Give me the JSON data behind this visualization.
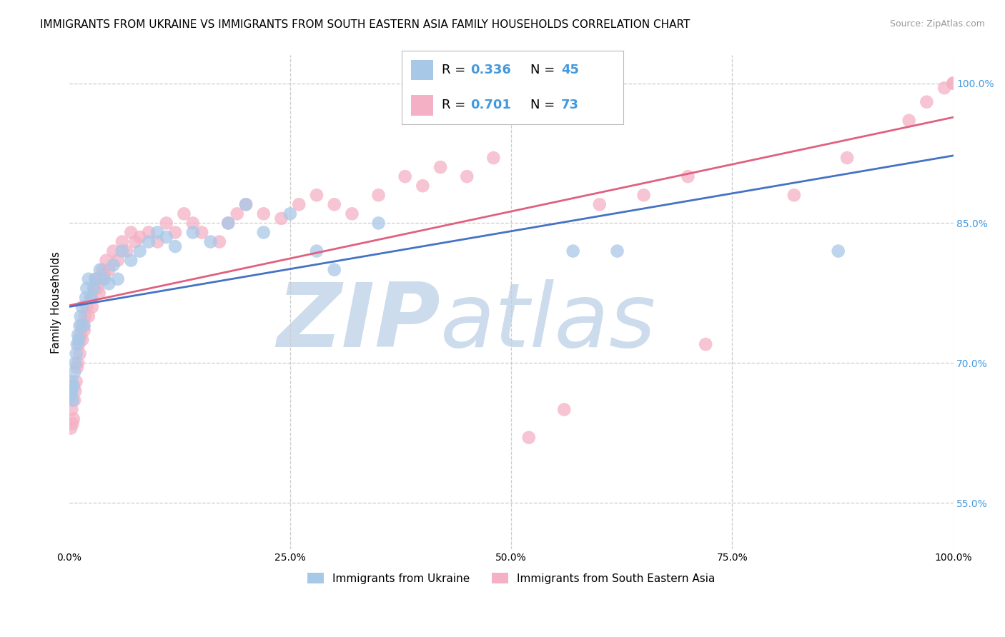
{
  "title": "IMMIGRANTS FROM UKRAINE VS IMMIGRANTS FROM SOUTH EASTERN ASIA FAMILY HOUSEHOLDS CORRELATION CHART",
  "source": "Source: ZipAtlas.com",
  "xlabel": "",
  "ylabel": "Family Households",
  "xmin": 0.0,
  "xmax": 100.0,
  "ymin": 50.0,
  "ymax": 103.0,
  "yticks": [
    55.0,
    70.0,
    85.0,
    100.0
  ],
  "xticks": [
    0.0,
    25.0,
    50.0,
    75.0,
    100.0
  ],
  "ukraine": {
    "label": "Immigrants from Ukraine",
    "color": "#a8c8e8",
    "trend_color": "#4472c4",
    "R": 0.336,
    "N": 45,
    "x": [
      0.2,
      0.3,
      0.3,
      0.4,
      0.5,
      0.6,
      0.7,
      0.8,
      0.9,
      1.0,
      1.1,
      1.2,
      1.3,
      1.5,
      1.7,
      1.9,
      2.0,
      2.2,
      2.5,
      2.8,
      3.0,
      3.5,
      4.0,
      4.5,
      5.0,
      5.5,
      6.0,
      7.0,
      8.0,
      9.0,
      10.0,
      11.0,
      12.0,
      14.0,
      16.0,
      18.0,
      20.0,
      22.0,
      25.0,
      28.0,
      30.0,
      35.0,
      57.0,
      62.0,
      87.0
    ],
    "y": [
      66.5,
      68.0,
      67.0,
      66.0,
      67.5,
      69.0,
      70.0,
      71.0,
      72.0,
      73.0,
      72.5,
      74.0,
      75.0,
      76.0,
      74.0,
      77.0,
      78.0,
      79.0,
      77.0,
      78.0,
      79.0,
      80.0,
      79.0,
      78.5,
      80.5,
      79.0,
      82.0,
      81.0,
      82.0,
      83.0,
      84.0,
      83.5,
      82.5,
      84.0,
      83.0,
      85.0,
      87.0,
      84.0,
      86.0,
      82.0,
      80.0,
      85.0,
      82.0,
      82.0,
      82.0
    ]
  },
  "sea": {
    "label": "Immigrants from South Eastern Asia",
    "color": "#f4b0c4",
    "trend_color": "#e06080",
    "R": 0.701,
    "N": 73,
    "x": [
      0.2,
      0.3,
      0.4,
      0.5,
      0.6,
      0.7,
      0.8,
      0.9,
      1.0,
      1.1,
      1.2,
      1.3,
      1.4,
      1.5,
      1.6,
      1.7,
      1.8,
      2.0,
      2.2,
      2.4,
      2.6,
      2.8,
      3.0,
      3.2,
      3.4,
      3.6,
      3.8,
      4.0,
      4.2,
      4.5,
      5.0,
      5.5,
      6.0,
      6.5,
      7.0,
      7.5,
      8.0,
      9.0,
      10.0,
      11.0,
      12.0,
      13.0,
      14.0,
      15.0,
      17.0,
      18.0,
      19.0,
      20.0,
      22.0,
      24.0,
      26.0,
      28.0,
      30.0,
      32.0,
      35.0,
      38.0,
      40.0,
      42.0,
      45.0,
      48.0,
      52.0,
      56.0,
      60.0,
      65.0,
      70.0,
      72.0,
      82.0,
      88.0,
      95.0,
      97.0,
      99.0,
      100.0,
      100.0
    ],
    "y": [
      63.0,
      65.0,
      63.5,
      64.0,
      66.0,
      67.0,
      68.0,
      69.5,
      70.0,
      72.0,
      71.0,
      73.0,
      74.0,
      72.5,
      74.0,
      73.5,
      75.0,
      76.0,
      75.0,
      77.0,
      76.0,
      78.0,
      79.0,
      78.0,
      77.5,
      79.0,
      80.0,
      79.5,
      81.0,
      80.0,
      82.0,
      81.0,
      83.0,
      82.0,
      84.0,
      83.0,
      83.5,
      84.0,
      83.0,
      85.0,
      84.0,
      86.0,
      85.0,
      84.0,
      83.0,
      85.0,
      86.0,
      87.0,
      86.0,
      85.5,
      87.0,
      88.0,
      87.0,
      86.0,
      88.0,
      90.0,
      89.0,
      91.0,
      90.0,
      92.0,
      62.0,
      65.0,
      87.0,
      88.0,
      90.0,
      72.0,
      88.0,
      92.0,
      96.0,
      98.0,
      99.5,
      100.0,
      100.0
    ]
  },
  "watermark_zip": "ZIP",
  "watermark_atlas": "atlas",
  "watermark_color": "#ccdcec",
  "background_color": "#ffffff",
  "grid_color": "#cccccc",
  "title_fontsize": 11,
  "axis_label_fontsize": 11,
  "tick_fontsize": 10,
  "legend_fontsize": 13,
  "right_tick_color": "#4499dd"
}
